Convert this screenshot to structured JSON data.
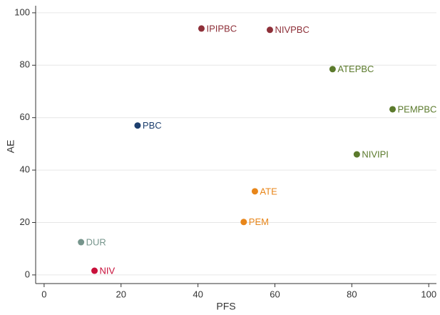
{
  "chart_data": {
    "type": "scatter",
    "x_label": "PFS",
    "y_label": "AE",
    "xlim": [
      -2.2,
      102
    ],
    "ylim": [
      -3.3,
      102.7
    ],
    "xticks": [
      0,
      20,
      40,
      60,
      80,
      100
    ],
    "yticks": [
      0,
      20,
      40,
      60,
      80,
      100
    ],
    "grid": true,
    "series": [
      {
        "name": "NIV",
        "color": "#c8103a",
        "x": [
          13.1
        ],
        "values": [
          1.6
        ]
      },
      {
        "name": "DUR",
        "color": "#76958c",
        "x": [
          9.6
        ],
        "values": [
          12.5
        ]
      },
      {
        "name": "PBC",
        "color": "#1d3f6e",
        "x": [
          24.3
        ],
        "values": [
          57.0
        ]
      },
      {
        "name": "IPIPBC",
        "color": "#8e3039",
        "x": [
          40.9
        ],
        "values": [
          94.0
        ]
      },
      {
        "name": "NIVPBC",
        "color": "#8e3039",
        "x": [
          58.7
        ],
        "values": [
          93.5
        ]
      },
      {
        "name": "ATEPBC",
        "color": "#5b7a2c",
        "x": [
          75.0
        ],
        "values": [
          78.5
        ]
      },
      {
        "name": "PEMPBC",
        "color": "#5b7a2c",
        "x": [
          90.6
        ],
        "values": [
          63.2
        ]
      },
      {
        "name": "NIVIPI",
        "color": "#5b7a2c",
        "x": [
          81.3
        ],
        "values": [
          46.0
        ]
      },
      {
        "name": "ATE",
        "color": "#e8861a",
        "x": [
          54.8
        ],
        "values": [
          31.9
        ]
      },
      {
        "name": "PEM",
        "color": "#e8861a",
        "x": [
          51.9
        ],
        "values": [
          20.2
        ]
      }
    ]
  }
}
